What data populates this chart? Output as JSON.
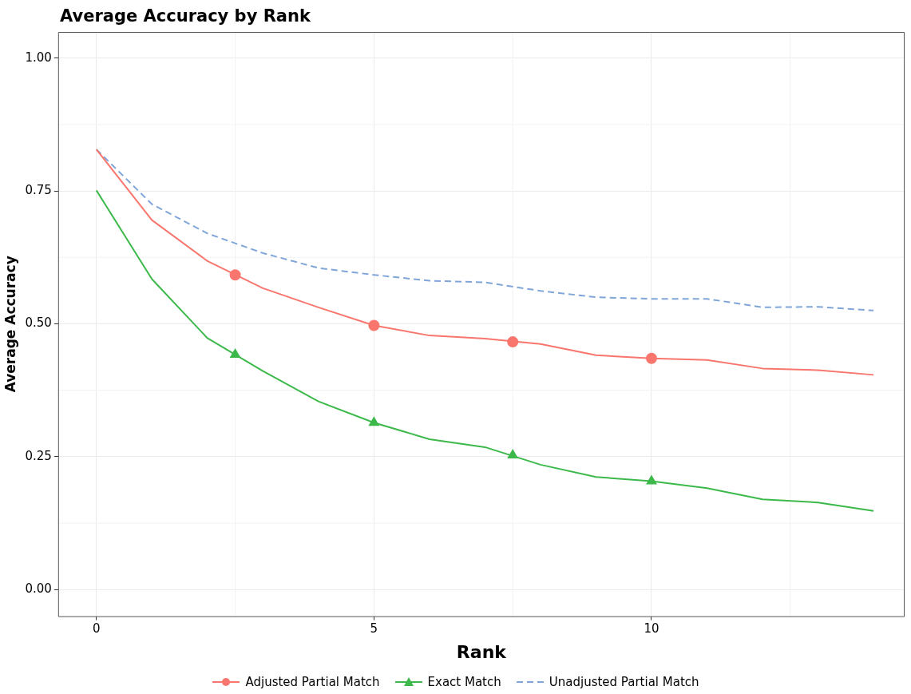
{
  "chart_data": {
    "type": "line",
    "title": "Average Accuracy by Rank",
    "xlabel": "Rank",
    "ylabel": "Average Accuracy",
    "xlim": [
      -0.69,
      14.56
    ],
    "xticks": [
      0,
      5,
      10
    ],
    "ylim": [
      -0.05,
      1.049
    ],
    "yticks": [
      {
        "value": 0,
        "label": "0.00"
      },
      {
        "value": 0.25,
        "label": "0.25"
      },
      {
        "value": 0.5,
        "label": "0.50"
      },
      {
        "value": 0.75,
        "label": "0.75"
      },
      {
        "value": 1,
        "label": "1.00"
      }
    ],
    "grid": true,
    "legend": "bottom",
    "series": [
      {
        "name": "Adjusted Partial Match",
        "color": "#f8766d",
        "type": "line",
        "marker": "none",
        "line_style": "solid",
        "x": [
          0,
          1,
          2,
          3,
          4,
          5,
          6,
          7,
          8,
          9,
          10,
          11,
          12,
          13,
          14
        ],
        "values": [
          0.828,
          0.695,
          0.618,
          0.567,
          0.531,
          0.497,
          0.478,
          0.472,
          0.462,
          0.441,
          0.435,
          0.432,
          0.416,
          0.413,
          0.404
        ]
      },
      {
        "color": "#f8766d",
        "type": "scatter",
        "marker": "circle",
        "x": [
          2.5,
          5,
          7.5,
          10
        ],
        "values": [
          0.592,
          0.497,
          0.466,
          0.435
        ]
      },
      {
        "name": "Exact Match",
        "color": "#3cb94a",
        "type": "line",
        "marker": "none",
        "line_style": "solid",
        "x": [
          0,
          1,
          2,
          3,
          4,
          5,
          6,
          7,
          8,
          9,
          10,
          11,
          12,
          13,
          14
        ],
        "values": [
          0.751,
          0.584,
          0.473,
          0.411,
          0.354,
          0.314,
          0.283,
          0.268,
          0.235,
          0.212,
          0.204,
          0.191,
          0.17,
          0.164,
          0.148
        ]
      },
      {
        "color": "#3cb94a",
        "type": "scatter",
        "marker": "triangle",
        "x": [
          2.5,
          5,
          7.5,
          10
        ],
        "values": [
          0.442,
          0.314,
          0.253,
          0.204
        ]
      },
      {
        "name": "Unadjusted Partial Match",
        "color": "#7fa5d9",
        "type": "line",
        "marker": "none",
        "line_style": "dashed",
        "x": [
          0,
          1,
          2,
          3,
          4,
          5,
          6,
          7,
          8,
          9,
          10,
          11,
          12,
          13,
          14
        ],
        "values": [
          0.828,
          0.725,
          0.67,
          0.633,
          0.605,
          0.592,
          0.581,
          0.578,
          0.562,
          0.55,
          0.547,
          0.547,
          0.531,
          0.532,
          0.525
        ]
      }
    ]
  }
}
